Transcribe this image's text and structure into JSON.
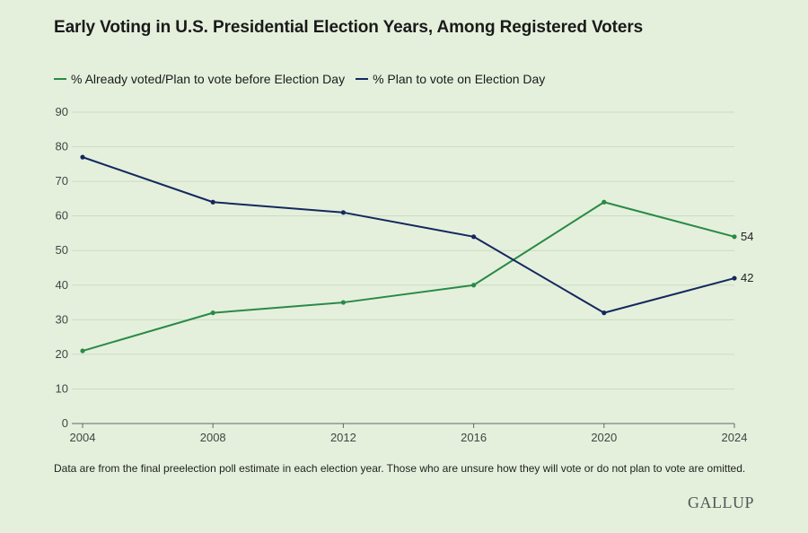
{
  "title": "Early Voting in U.S. Presidential Election Years, Among Registered Voters",
  "footnote": "Data are from the final preelection poll estimate in each election year. Those who are unsure how they will vote or do not plan to vote are omitted.",
  "brand": "GALLUP",
  "colors": {
    "early": "#2a8a46",
    "election_day": "#14285e",
    "grid": "#c9dcc0"
  },
  "chart_data": {
    "type": "line",
    "title": "Early Voting in U.S. Presidential Election Years, Among Registered Voters",
    "x": [
      2004,
      2008,
      2012,
      2016,
      2020,
      2024
    ],
    "series": [
      {
        "name": "% Already voted/Plan to vote before Election Day",
        "values": [
          21,
          32,
          35,
          40,
          64,
          54
        ],
        "end_label": "54"
      },
      {
        "name": "% Plan to vote on Election Day",
        "values": [
          77,
          64,
          61,
          54,
          32,
          42
        ],
        "end_label": "42"
      }
    ],
    "xlabel": "",
    "ylabel": "",
    "ylim": [
      0,
      90
    ],
    "yticks": [
      0,
      10,
      20,
      30,
      40,
      50,
      60,
      70,
      80,
      90
    ],
    "grid": true,
    "legend": "top-left"
  }
}
